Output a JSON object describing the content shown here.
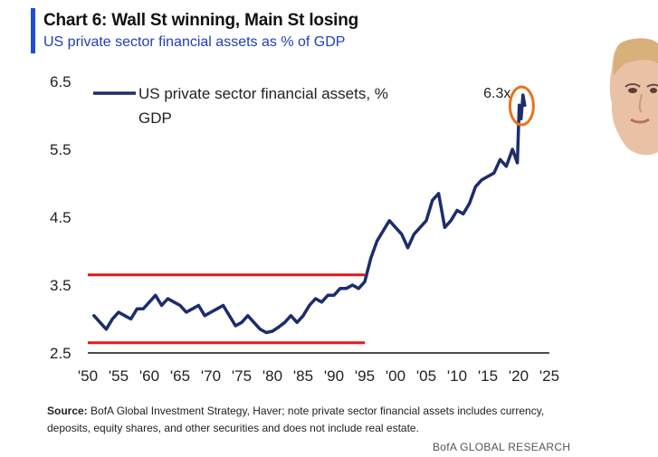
{
  "header": {
    "title": "Chart 6: Wall St winning, Main St losing",
    "subtitle": "US private sector financial assets as % of GDP",
    "accent_color": "#1f4fd6"
  },
  "chart_data": {
    "type": "line",
    "title": "Chart 6: Wall St winning, Main St losing",
    "subtitle": "US private sector financial assets as % of GDP",
    "xlabel": "",
    "ylabel": "",
    "xlim": [
      1950,
      2025
    ],
    "ylim": [
      2.5,
      6.5
    ],
    "x_ticks": [
      1950,
      1955,
      1960,
      1965,
      1970,
      1975,
      1980,
      1985,
      1990,
      1995,
      2000,
      2005,
      2010,
      2015,
      2020,
      2025
    ],
    "x_tick_labels": [
      "'50",
      "'55",
      "'60",
      "'65",
      "'70",
      "'75",
      "'80",
      "'85",
      "'90",
      "'95",
      "'00",
      "'05",
      "'10",
      "'15",
      "'20",
      "'25"
    ],
    "y_ticks": [
      2.5,
      3.5,
      4.5,
      5.5,
      6.5
    ],
    "y_tick_labels": [
      "2.5",
      "3.5",
      "4.5",
      "5.5",
      "6.5"
    ],
    "legend": {
      "label_line1": "US private sector financial assets, %",
      "label_line2": "GDP",
      "position": "top-left"
    },
    "series": [
      {
        "name": "US private sector financial assets, % GDP",
        "color": "#1b2d6b",
        "x": [
          1951,
          1952,
          1953,
          1954,
          1955,
          1956,
          1957,
          1958,
          1959,
          1960,
          1961,
          1962,
          1963,
          1964,
          1965,
          1966,
          1967,
          1968,
          1969,
          1970,
          1971,
          1972,
          1973,
          1974,
          1975,
          1976,
          1977,
          1978,
          1979,
          1980,
          1981,
          1982,
          1983,
          1984,
          1985,
          1986,
          1987,
          1988,
          1989,
          1990,
          1991,
          1992,
          1993,
          1994,
          1995,
          1996,
          1997,
          1998,
          1999,
          2000,
          2001,
          2002,
          2003,
          2004,
          2005,
          2006,
          2007,
          2008,
          2009,
          2010,
          2011,
          2012,
          2013,
          2014,
          2015,
          2016,
          2017,
          2018,
          2019,
          2019.8,
          2020.1,
          2020.4,
          2020.7,
          2021
        ],
        "values": [
          3.05,
          2.95,
          2.85,
          3.0,
          3.1,
          3.05,
          3.0,
          3.15,
          3.15,
          3.25,
          3.35,
          3.2,
          3.3,
          3.25,
          3.2,
          3.1,
          3.15,
          3.2,
          3.05,
          3.1,
          3.15,
          3.2,
          3.05,
          2.9,
          2.95,
          3.05,
          2.95,
          2.85,
          2.8,
          2.82,
          2.88,
          2.95,
          3.05,
          2.95,
          3.05,
          3.2,
          3.3,
          3.25,
          3.35,
          3.35,
          3.45,
          3.45,
          3.5,
          3.45,
          3.55,
          3.9,
          4.15,
          4.3,
          4.45,
          4.35,
          4.25,
          4.05,
          4.25,
          4.35,
          4.45,
          4.75,
          4.85,
          4.35,
          4.45,
          4.6,
          4.55,
          4.7,
          4.95,
          5.05,
          5.1,
          5.15,
          5.35,
          5.25,
          5.5,
          5.3,
          6.15,
          5.95,
          6.3,
          6.15
        ]
      }
    ],
    "reference_lines": [
      {
        "y": 3.65,
        "x_start": 1950,
        "x_end": 1995,
        "color": "#e8161b"
      },
      {
        "y": 2.65,
        "x_start": 1950,
        "x_end": 1995,
        "color": "#e8161b"
      }
    ],
    "annotations": [
      {
        "text": "6.3x",
        "x": 2020.5,
        "y": 6.3,
        "marker": "circle",
        "color": "#e8741b"
      }
    ]
  },
  "footer": {
    "source_label": "Source:",
    "source_text": "BofA Global Investment Strategy, Haver; note private sector financial assets includes currency, deposits,  equity shares, and other securities and does not include  real estate.",
    "credit": "BofA GLOBAL RESEARCH"
  }
}
